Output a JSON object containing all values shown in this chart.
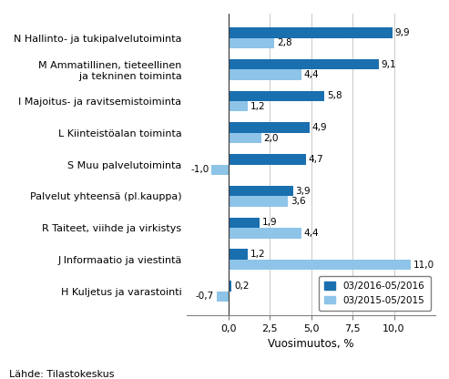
{
  "categories": [
    "N Hallinto- ja tukipalvelutoiminta",
    "M Ammatillinen, tieteellinen\n    ja tekninen toiminta",
    "I Majoitus- ja ravitsemistoiminta",
    "L Kiinteistöalan toiminta",
    "S Muu palvelutoiminta",
    "Palvelut yhteensä (pl.kauppa)",
    "R Taiteet, viihde ja virkistys",
    "J Informaatio ja viestintä",
    "H Kuljetus ja varastointi"
  ],
  "series1_values": [
    9.9,
    9.1,
    5.8,
    4.9,
    4.7,
    3.9,
    1.9,
    1.2,
    0.2
  ],
  "series2_values": [
    2.8,
    4.4,
    1.2,
    2.0,
    -1.0,
    3.6,
    4.4,
    11.0,
    -0.7
  ],
  "series1_label": "03/2016-05/2016",
  "series2_label": "03/2015-05/2015",
  "series1_color": "#1a6faf",
  "series2_color": "#8dc4e8",
  "xlabel": "Vuosimuutos, %",
  "xlim": [
    -2.5,
    12.5
  ],
  "xticks": [
    0.0,
    2.5,
    5.0,
    7.5,
    10.0
  ],
  "xtick_labels": [
    "0,0",
    "2,5",
    "5,0",
    "7,5",
    "10,0"
  ],
  "source": "Lähde: Tilastokeskus",
  "background_color": "#ffffff",
  "bar_height": 0.33,
  "fontsize_labels": 8.0,
  "fontsize_values": 7.5,
  "fontsize_xlabel": 8.5,
  "fontsize_source": 8.0
}
